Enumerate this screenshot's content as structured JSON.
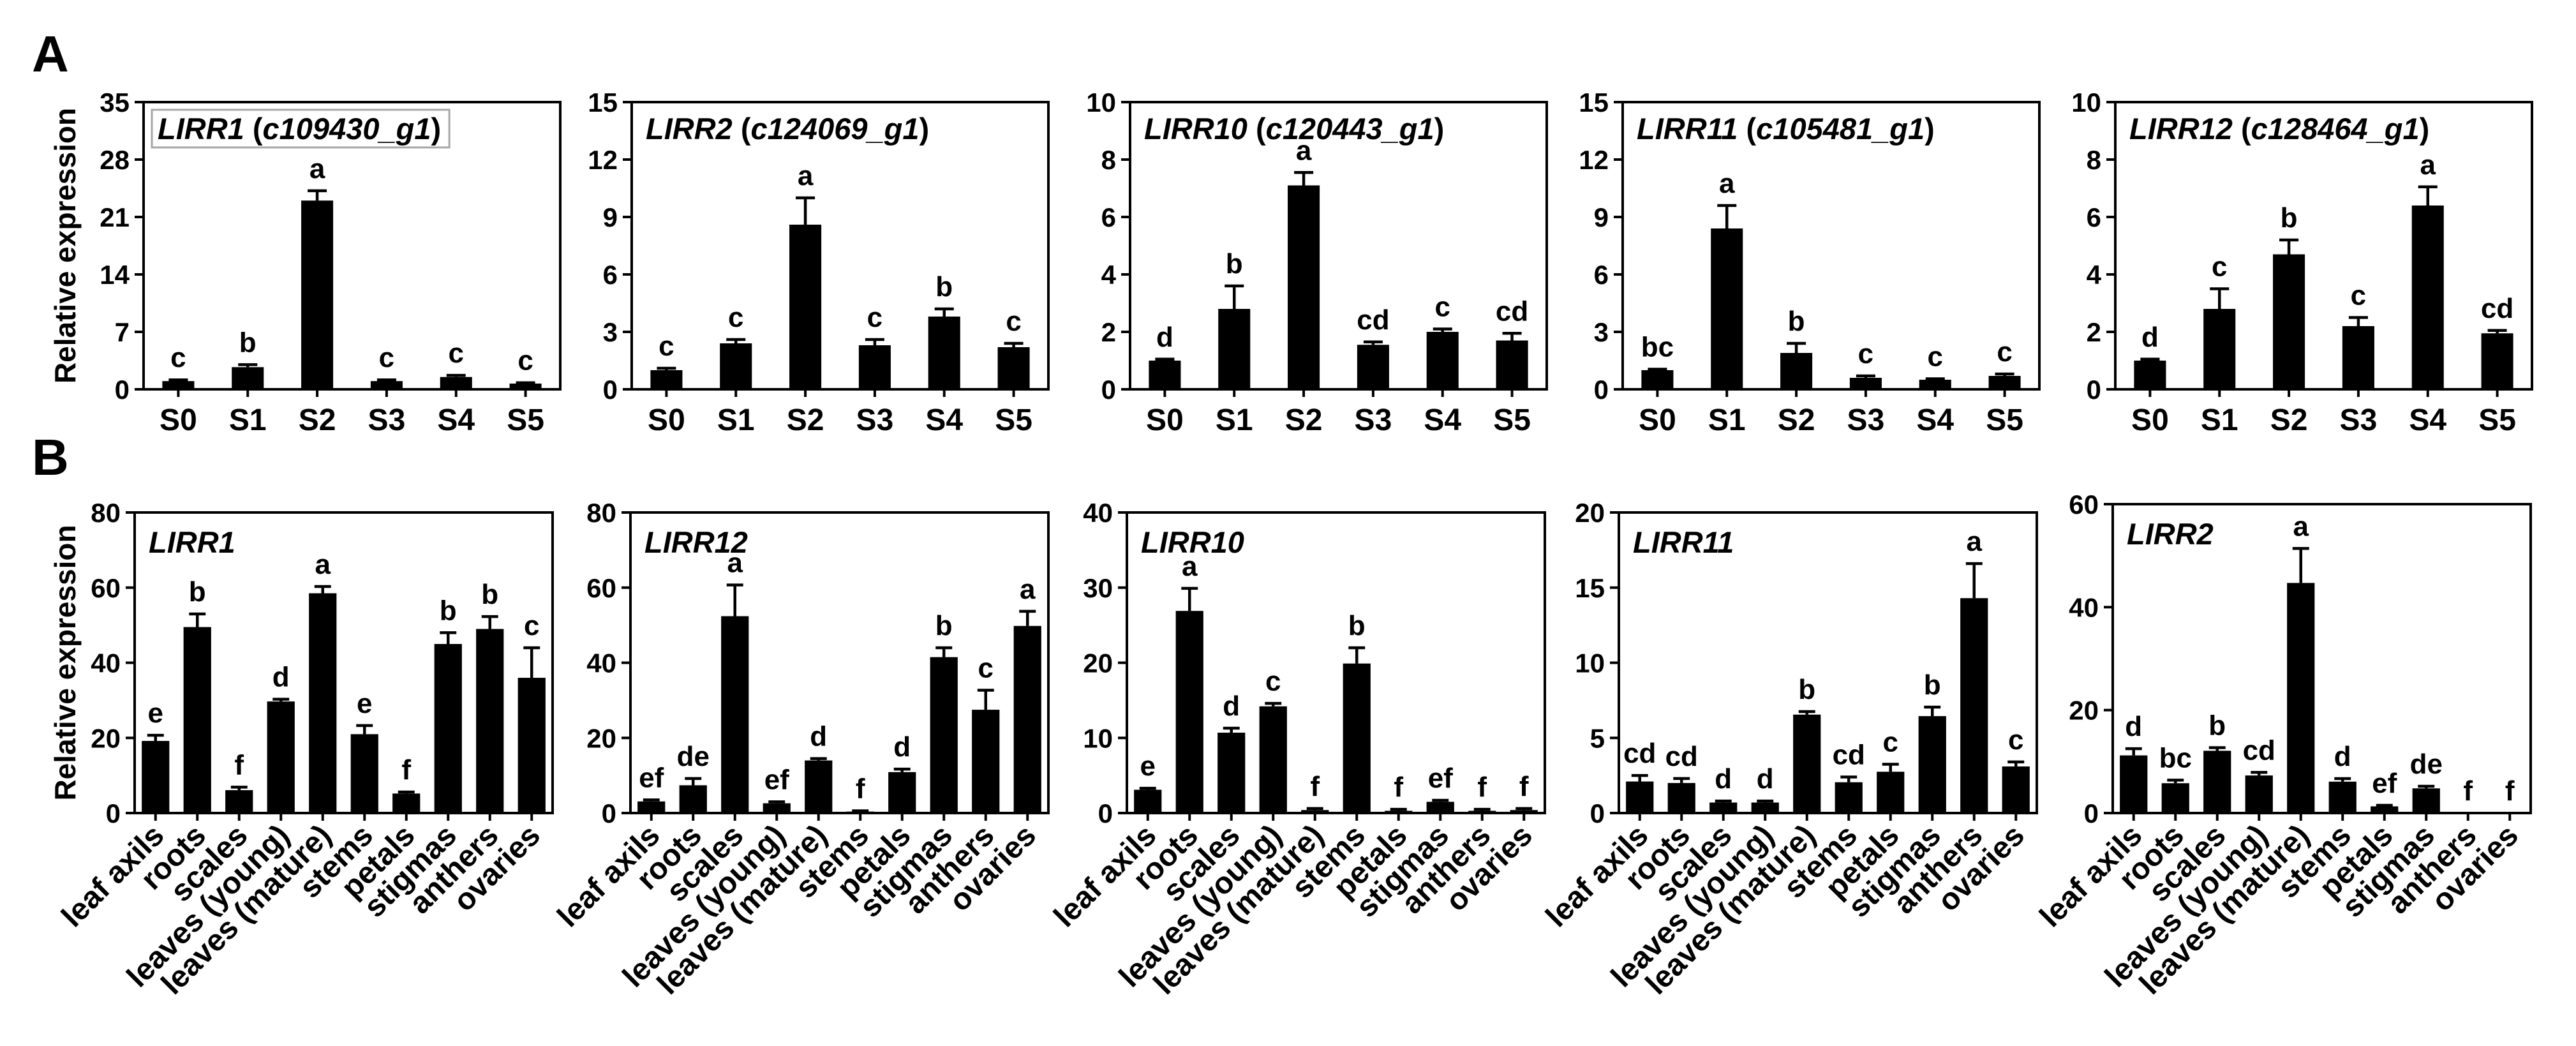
{
  "panel_labels": [
    "A",
    "B"
  ],
  "colors": {
    "bar": "#000000",
    "axis": "#000000",
    "text": "#000000",
    "title_box": "#a6a6a6",
    "background": "#ffffff"
  },
  "chart_data": [
    {
      "type": "bar",
      "title": "LIRR1 (c109430_g1)",
      "title_box": true,
      "xlabel": "",
      "ylabel": "Relative expression",
      "categories": [
        "S0",
        "S1",
        "S2",
        "S3",
        "S4",
        "S5"
      ],
      "values": [
        1.0,
        2.7,
        23.0,
        1.0,
        1.5,
        0.7
      ],
      "errors": [
        0.15,
        0.3,
        1.2,
        0.15,
        0.2,
        0.1
      ],
      "letters": [
        "c",
        "b",
        "a",
        "c",
        "c",
        "c"
      ],
      "ylim": [
        0,
        35
      ],
      "yticks": [
        0,
        7,
        14,
        21,
        28,
        35
      ]
    },
    {
      "type": "bar",
      "title": "LIRR2 (c124069_g1)",
      "title_box": false,
      "xlabel": "",
      "ylabel": "",
      "categories": [
        "S0",
        "S1",
        "S2",
        "S3",
        "S4",
        "S5"
      ],
      "values": [
        1.0,
        2.4,
        8.6,
        2.3,
        3.8,
        2.2
      ],
      "errors": [
        0.1,
        0.2,
        1.4,
        0.3,
        0.4,
        0.2
      ],
      "letters": [
        "c",
        "c",
        "a",
        "c",
        "b",
        "c"
      ],
      "ylim": [
        0,
        15
      ],
      "yticks": [
        0,
        3,
        6,
        9,
        12,
        15
      ]
    },
    {
      "type": "bar",
      "title": "LIRR10 (c120443_g1)",
      "title_box": false,
      "xlabel": "",
      "ylabel": "",
      "categories": [
        "S0",
        "S1",
        "S2",
        "S3",
        "S4",
        "S5"
      ],
      "values": [
        1.0,
        2.8,
        7.1,
        1.55,
        2.0,
        1.7
      ],
      "errors": [
        0.05,
        0.8,
        0.45,
        0.1,
        0.1,
        0.25
      ],
      "letters": [
        "d",
        "b",
        "a",
        "cd",
        "c",
        "cd"
      ],
      "ylim": [
        0,
        10
      ],
      "yticks": [
        0,
        2,
        4,
        6,
        8,
        10
      ]
    },
    {
      "type": "bar",
      "title": "LIRR11 (c105481_g1)",
      "title_box": false,
      "xlabel": "",
      "ylabel": "",
      "categories": [
        "S0",
        "S1",
        "S2",
        "S3",
        "S4",
        "S5"
      ],
      "values": [
        1.0,
        8.4,
        1.9,
        0.6,
        0.5,
        0.7
      ],
      "errors": [
        0.05,
        1.2,
        0.5,
        0.1,
        0.05,
        0.1
      ],
      "letters": [
        "bc",
        "a",
        "b",
        "c",
        "c",
        "c"
      ],
      "ylim": [
        0,
        15
      ],
      "yticks": [
        0,
        3,
        6,
        9,
        12,
        15
      ]
    },
    {
      "type": "bar",
      "title": "LIRR12 (c128464_g1)",
      "title_box": false,
      "xlabel": "",
      "ylabel": "",
      "categories": [
        "S0",
        "S1",
        "S2",
        "S3",
        "S4",
        "S5"
      ],
      "values": [
        1.0,
        2.8,
        4.7,
        2.2,
        6.4,
        1.95
      ],
      "errors": [
        0.05,
        0.7,
        0.5,
        0.3,
        0.65,
        0.1
      ],
      "letters": [
        "d",
        "c",
        "b",
        "c",
        "a",
        "cd"
      ],
      "ylim": [
        0,
        10
      ],
      "yticks": [
        0,
        2,
        4,
        6,
        8,
        10
      ]
    },
    {
      "type": "bar",
      "title": "LIRR1",
      "title_box": false,
      "xlabel": "",
      "ylabel": "Relative expression",
      "categories": [
        "leaf axils",
        "roots",
        "scales",
        "leaves (young)",
        "leaves (mature)",
        "stems",
        "petals",
        "stigmas",
        "anthers",
        "ovaries"
      ],
      "values": [
        19.2,
        49.5,
        6.1,
        29.7,
        58.5,
        21.0,
        5.2,
        45.0,
        49.0,
        36.0
      ],
      "errors": [
        1.5,
        3.5,
        0.8,
        0.6,
        1.8,
        2.3,
        0.4,
        3.0,
        3.3,
        8.0
      ],
      "letters": [
        "e",
        "b",
        "f",
        "d",
        "a",
        "e",
        "f",
        "b",
        "b",
        "c"
      ],
      "ylim": [
        0,
        80
      ],
      "yticks": [
        0,
        20,
        40,
        60,
        80
      ]
    },
    {
      "type": "bar",
      "title": "LIRR12",
      "title_box": false,
      "xlabel": "",
      "ylabel": "",
      "categories": [
        "leaf axils",
        "roots",
        "scales",
        "leaves (young)",
        "leaves (mature)",
        "stems",
        "petals",
        "stigmas",
        "anthers",
        "ovaries"
      ],
      "values": [
        3.1,
        7.4,
        52.4,
        2.6,
        14.0,
        0.4,
        10.9,
        41.5,
        27.5,
        49.8
      ],
      "errors": [
        0.4,
        1.8,
        8.3,
        0.4,
        0.5,
        0.2,
        0.8,
        2.5,
        5.2,
        3.9
      ],
      "letters": [
        "ef",
        "de",
        "a",
        "ef",
        "d",
        "f",
        "d",
        "b",
        "c",
        "a"
      ],
      "ylim": [
        0,
        80
      ],
      "yticks": [
        0,
        20,
        40,
        60,
        80
      ]
    },
    {
      "type": "bar",
      "title": "LIRR10",
      "title_box": false,
      "xlabel": "",
      "ylabel": "",
      "categories": [
        "leaf axils",
        "roots",
        "scales",
        "leaves (young)",
        "leaves (mature)",
        "stems",
        "petals",
        "stigmas",
        "anthers",
        "ovaries"
      ],
      "values": [
        3.1,
        26.9,
        10.7,
        14.2,
        0.4,
        19.9,
        0.3,
        1.5,
        0.3,
        0.4
      ],
      "errors": [
        0.2,
        3.0,
        0.6,
        0.4,
        0.2,
        2.1,
        0.2,
        0.2,
        0.2,
        0.2
      ],
      "letters": [
        "e",
        "a",
        "d",
        "c",
        "f",
        "b",
        "f",
        "ef",
        "f",
        "f"
      ],
      "ylim": [
        0,
        40
      ],
      "yticks": [
        0,
        10,
        20,
        30,
        40
      ]
    },
    {
      "type": "bar",
      "title": "LIRR11",
      "title_box": false,
      "xlabel": "",
      "ylabel": "",
      "categories": [
        "leaf axils",
        "roots",
        "scales",
        "leaves (young)",
        "leaves (mature)",
        "stems",
        "petals",
        "stigmas",
        "anthers",
        "ovaries"
      ],
      "values": [
        2.1,
        2.0,
        0.7,
        0.7,
        6.55,
        2.05,
        2.75,
        6.45,
        14.3,
        3.1
      ],
      "errors": [
        0.4,
        0.3,
        0.1,
        0.1,
        0.2,
        0.35,
        0.5,
        0.6,
        2.3,
        0.3
      ],
      "letters": [
        "cd",
        "cd",
        "d",
        "d",
        "b",
        "cd",
        "c",
        "b",
        "a",
        "c"
      ],
      "ylim": [
        0,
        20
      ],
      "yticks": [
        0,
        5,
        10,
        15,
        20
      ]
    },
    {
      "type": "bar",
      "title": "LIRR2",
      "title_box": false,
      "xlabel": "",
      "ylabel": "",
      "categories": [
        "leaf axils",
        "roots",
        "scales",
        "leaves (young)",
        "leaves (mature)",
        "stems",
        "petals",
        "stigmas",
        "anthers",
        "ovaries"
      ],
      "values": [
        11.2,
        5.8,
        12.1,
        7.3,
        44.7,
        6.1,
        1.3,
        4.8,
        0,
        0
      ],
      "errors": [
        1.3,
        0.6,
        0.6,
        0.6,
        6.7,
        0.6,
        0.2,
        0.4,
        0,
        0
      ],
      "letters": [
        "d",
        "bc",
        "b",
        "cd",
        "a",
        "d",
        "ef",
        "de",
        "f",
        "f"
      ],
      "ylim": [
        0,
        60
      ],
      "yticks": [
        0,
        20,
        40,
        60
      ]
    }
  ]
}
